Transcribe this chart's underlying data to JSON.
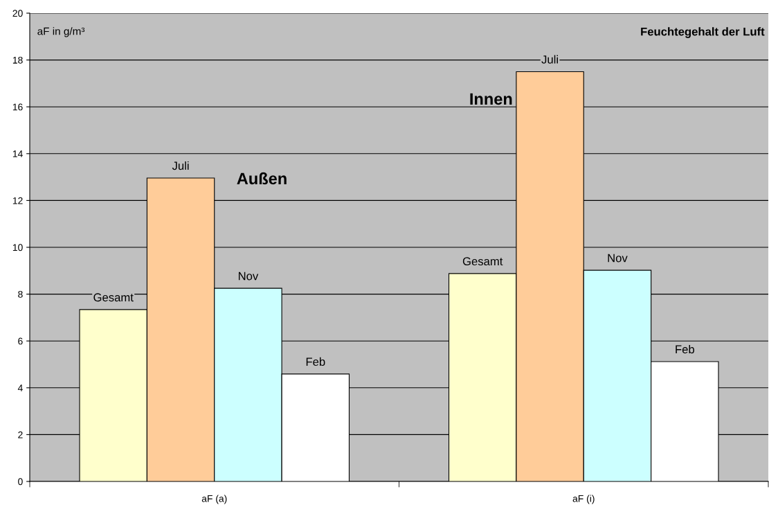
{
  "chart_data": {
    "type": "bar",
    "title": "Feuchtegehalt der Luft",
    "categories": [
      "aF (a)",
      "aF (i)"
    ],
    "series": [
      {
        "name": "Gesamt",
        "color": "#ffffcc",
        "values": [
          7.34,
          8.88
        ]
      },
      {
        "name": "Juli",
        "color": "#ffcc99",
        "values": [
          12.96,
          17.5
        ]
      },
      {
        "name": "Nov",
        "color": "#ccffff",
        "values": [
          8.25,
          9.02
        ]
      },
      {
        "name": "Feb",
        "color": "#ffffff",
        "values": [
          4.59,
          5.12
        ]
      }
    ],
    "annotations": [
      "aF in g/m³",
      "Außen",
      "Innen"
    ],
    "ylim": [
      0,
      20
    ],
    "yticks": [
      0,
      2,
      4,
      6,
      8,
      10,
      12,
      14,
      16,
      18,
      20
    ],
    "grid": "y",
    "legend": false
  }
}
